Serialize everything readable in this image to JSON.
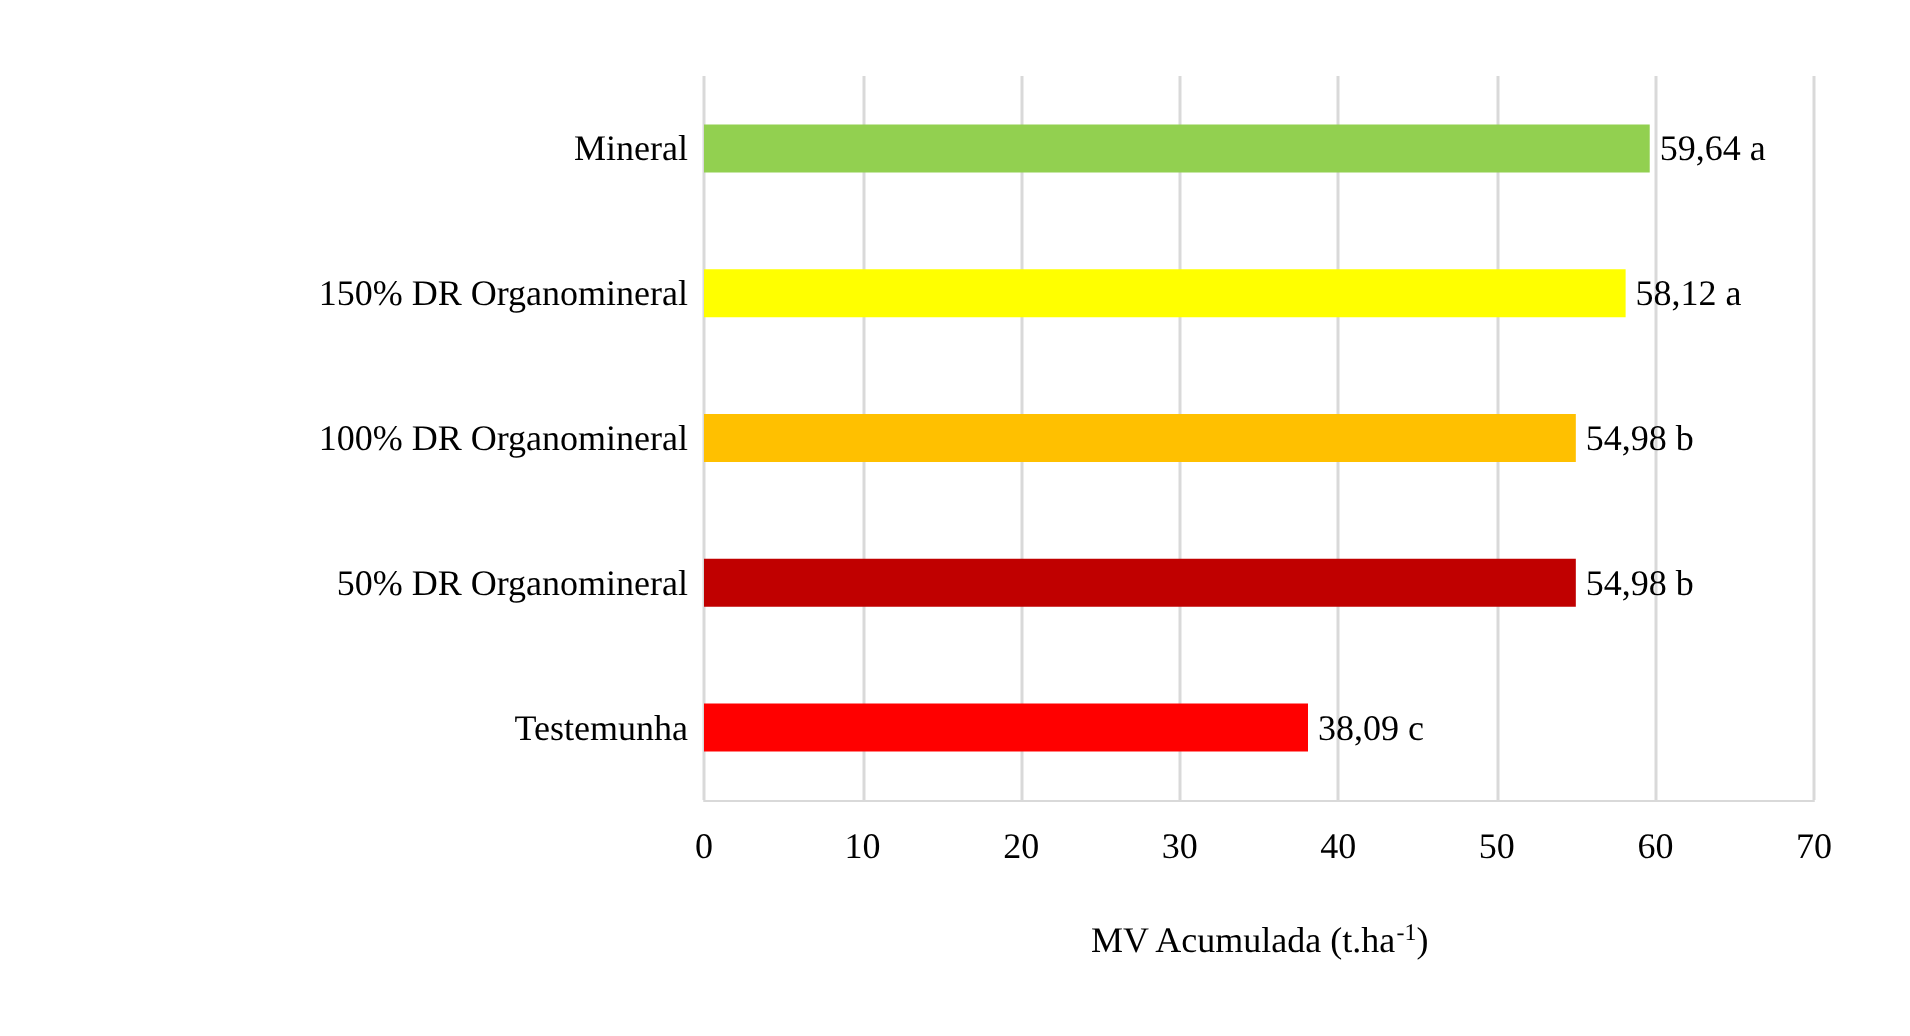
{
  "chart_data": {
    "type": "bar",
    "orientation": "horizontal",
    "xlabel": "MV Acumulada (t.ha$^{-1}$)",
    "categories": [
      "Mineral",
      "150% DR Organomineral",
      "100% DR Organomineral",
      "50% DR Organomineral",
      "Testemunha"
    ],
    "values": [
      59.64,
      58.12,
      54.98,
      54.98,
      38.09
    ],
    "colors": [
      "#92d050",
      "#ffff00",
      "#ffc000",
      "#c00000",
      "#ff0000"
    ],
    "value_labels": [
      "59,64 a",
      "58,12 a",
      "54,98 b",
      "54,98 b",
      "38,09 c"
    ],
    "xlim": [
      0,
      70
    ],
    "xticks": [
      0,
      10,
      20,
      30,
      40,
      50,
      60,
      70
    ],
    "grid": "x"
  }
}
